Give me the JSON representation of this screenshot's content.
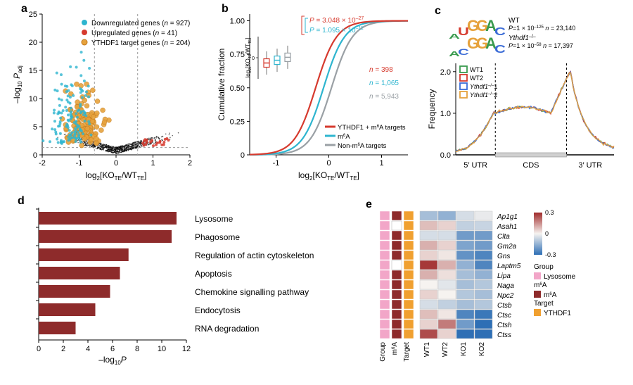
{
  "panel_a": {
    "type": "scatter",
    "label": "a",
    "xlabel": "log₂[KO_TE/WT_TE]",
    "ylabel": "–log₁₀ P_adj",
    "xlim": [
      -2,
      2
    ],
    "ylim": [
      0,
      25
    ],
    "xticks": [
      -2,
      -1,
      0,
      1,
      2
    ],
    "yticks": [
      0,
      5,
      10,
      15,
      20,
      25
    ],
    "legend": [
      {
        "label": "Downregulated genes (n = 927)",
        "color": "#2eb5cf"
      },
      {
        "label": "Upregulated genes (n = 41)",
        "color": "#d63a2e"
      },
      {
        "label": "YTHDF1 target genes (n = 204)",
        "color": "#e6a23c"
      }
    ],
    "threshold_x": [
      -0.585,
      0.585
    ],
    "threshold_y": 1.3,
    "bg_point_color": "#000000",
    "label_fontsize": 12,
    "background_color": "#ffffff"
  },
  "panel_b": {
    "type": "line",
    "label": "b",
    "xlabel": "log₂[KO_TE/WT_TE]",
    "ylabel": "Cumulative fraction",
    "xlim": [
      -1.5,
      1.5
    ],
    "ylim": [
      0,
      1.05
    ],
    "xticks": [
      -1,
      0,
      1
    ],
    "yticks": [
      0,
      0.25,
      0.5,
      0.75,
      1.0
    ],
    "ytick_labels": [
      "0",
      "0.25",
      "0.50",
      "0.75",
      "1.00"
    ],
    "p_red": "P = 3.048 × 10⁻²⁷",
    "p_cyan": "P = 1.095 × 10⁻¹¹",
    "n_red": "n = 398",
    "n_cyan": "n = 1,065",
    "n_grey": "n = 5,943",
    "series": [
      {
        "label": "YTHDF1 + m⁶A targets",
        "color": "#d63a2e"
      },
      {
        "label": "m⁶A",
        "color": "#2eb5cf"
      },
      {
        "label": "Non-m⁶A targets",
        "color": "#9aa0a5"
      }
    ],
    "inset": {
      "ylabel": "log₂[KO_TE/WT_TE]",
      "box_colors": [
        "#d63a2e",
        "#2eb5cf",
        "#9aa0a5"
      ],
      "yrange": [
        -1,
        1
      ]
    },
    "label_fontsize": 12
  },
  "panel_c": {
    "type": "line",
    "label": "c",
    "ylabel": "Frequency",
    "xregions": [
      "5′ UTR",
      "CDS",
      "3′ UTR"
    ],
    "ylim": [
      0,
      2.2
    ],
    "yticks": [
      0,
      1.0,
      2.0
    ],
    "motif": [
      {
        "seq": "AUGGAC",
        "label": "WT",
        "p": "P=1 × 10⁻¹²⁵",
        "n": "n = 23,140"
      },
      {
        "seq": "ACGGAC",
        "label": "Ythdf1⁻/⁻",
        "p": "P=1 × 10⁻⁵⁸",
        "n": "n = 17,397"
      }
    ],
    "series": [
      {
        "label": "WT1",
        "color": "#3a9b4f"
      },
      {
        "label": "WT2",
        "color": "#d63a2e"
      },
      {
        "label": "Ythdf1⁻/⁻1",
        "color": "#3a6bd6"
      },
      {
        "label": "Ythdf1⁻/⁻2",
        "color": "#e6a23c"
      }
    ],
    "label_fontsize": 12
  },
  "panel_d": {
    "type": "bar",
    "label": "d",
    "xlabel": "–log₁₀P",
    "xlim": [
      0,
      12
    ],
    "xticks": [
      0,
      2,
      4,
      6,
      8,
      10,
      12
    ],
    "bar_color": "#8e2b2b",
    "categories": [
      {
        "name": "Lysosome",
        "value": 11.2
      },
      {
        "name": "Phagosome",
        "value": 10.8
      },
      {
        "name": "Regulation of actin cytoskeleton",
        "value": 7.3
      },
      {
        "name": "Apoptosis",
        "value": 6.6
      },
      {
        "name": "Chemokine signalling pathway",
        "value": 5.8
      },
      {
        "name": "Endocytosis",
        "value": 4.6
      },
      {
        "name": "RNA degradation",
        "value": 3.0
      }
    ],
    "label_fontsize": 12
  },
  "panel_e": {
    "type": "heatmap",
    "label": "e",
    "row_genes": [
      "Ap1g1",
      "Asah1",
      "Clta",
      "Gm2a",
      "Gns",
      "Laptm5",
      "Lipa",
      "Naga",
      "Npc2",
      "Ctsb",
      "Ctsc",
      "Ctsh",
      "Ctss"
    ],
    "cols": [
      "Group",
      "m⁶A",
      "Target",
      "WT1",
      "WT2",
      "KO1",
      "KO2"
    ],
    "colorbar": {
      "min": -0.3,
      "max": 0.3,
      "ticks": [
        -0.3,
        0,
        0.3
      ],
      "low": "#2e6fb5",
      "mid": "#f6f3f0",
      "high": "#a02b2b"
    },
    "group_color": "#f2a6c8",
    "m6a_color": "#8e2b2b",
    "target_color": "#f0a030",
    "legend_labels": {
      "group": "Group",
      "group_item": "Lysosome",
      "m6a": "m⁶A",
      "m6a_item": "m⁶A",
      "target": "Target",
      "target_item": "YTHDF1"
    },
    "na_rows_m6a": [
      1,
      5
    ],
    "values": [
      [
        0.28,
        0.12,
        -0.07,
        -0.12,
        -0.15,
        -0.05,
        -0.02
      ],
      [
        0.28,
        0.0,
        -0.07,
        0.08,
        0.05,
        -0.08,
        -0.07
      ],
      [
        0.28,
        0.12,
        -0.07,
        -0.05,
        -0.05,
        -0.2,
        -0.2
      ],
      [
        0.28,
        0.12,
        -0.07,
        0.1,
        0.05,
        -0.18,
        -0.2
      ],
      [
        0.28,
        0.12,
        -0.07,
        0.05,
        0.02,
        -0.22,
        -0.25
      ],
      [
        0.28,
        0.0,
        -0.07,
        0.28,
        0.1,
        -0.15,
        -0.25
      ],
      [
        0.28,
        0.12,
        -0.07,
        0.1,
        0.03,
        -0.12,
        -0.15
      ],
      [
        0.28,
        0.12,
        -0.07,
        0.0,
        -0.03,
        -0.12,
        -0.1
      ],
      [
        0.28,
        0.12,
        -0.07,
        0.05,
        0.0,
        -0.1,
        -0.12
      ],
      [
        0.28,
        0.12,
        -0.07,
        -0.05,
        -0.08,
        -0.12,
        -0.1
      ],
      [
        0.28,
        0.12,
        -0.07,
        0.08,
        0.02,
        -0.25,
        -0.28
      ],
      [
        0.28,
        0.12,
        -0.07,
        0.05,
        0.18,
        -0.2,
        -0.3
      ],
      [
        0.28,
        0.12,
        -0.07,
        0.25,
        0.05,
        -0.3,
        -0.3
      ]
    ],
    "label_fontsize": 11
  }
}
